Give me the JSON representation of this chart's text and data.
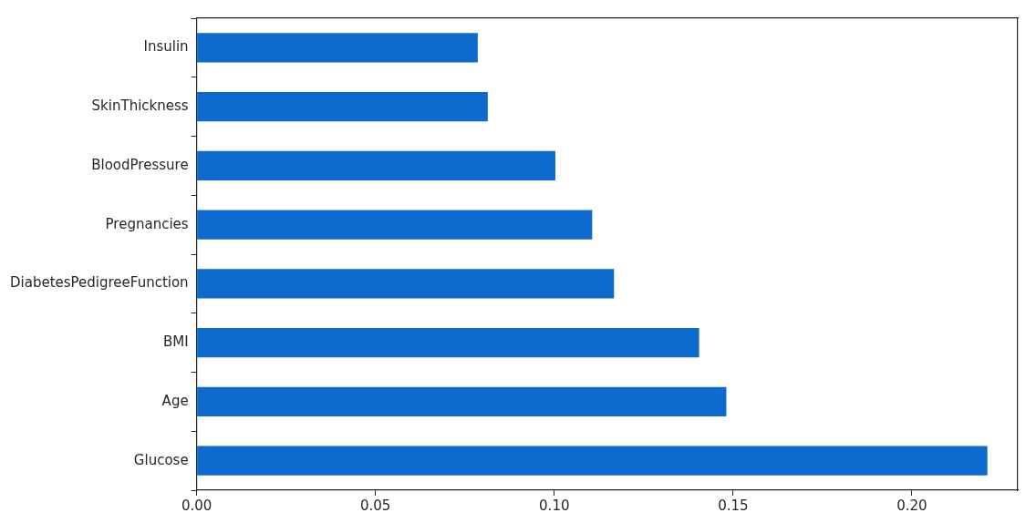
{
  "chart_data": {
    "type": "bar",
    "orientation": "horizontal",
    "categories": [
      "Insulin",
      "SkinThickness",
      "BloodPressure",
      "Pregnancies",
      "DiabetesPedigreeFunction",
      "BMI",
      "Age",
      "Glucose"
    ],
    "values": [
      0.0786,
      0.0814,
      0.1003,
      0.1106,
      0.1167,
      0.1405,
      0.1481,
      0.2211
    ],
    "color": "#0d6bcf",
    "xlim": [
      0,
      0.2296
    ],
    "xticks": [
      {
        "value": 0,
        "label": "0.00"
      },
      {
        "value": 0.05,
        "label": "0.05"
      },
      {
        "value": 0.1,
        "label": "0.10"
      },
      {
        "value": 0.15,
        "label": "0.15"
      },
      {
        "value": 0.2,
        "label": "0.20"
      }
    ],
    "grid": false,
    "legend": false
  }
}
